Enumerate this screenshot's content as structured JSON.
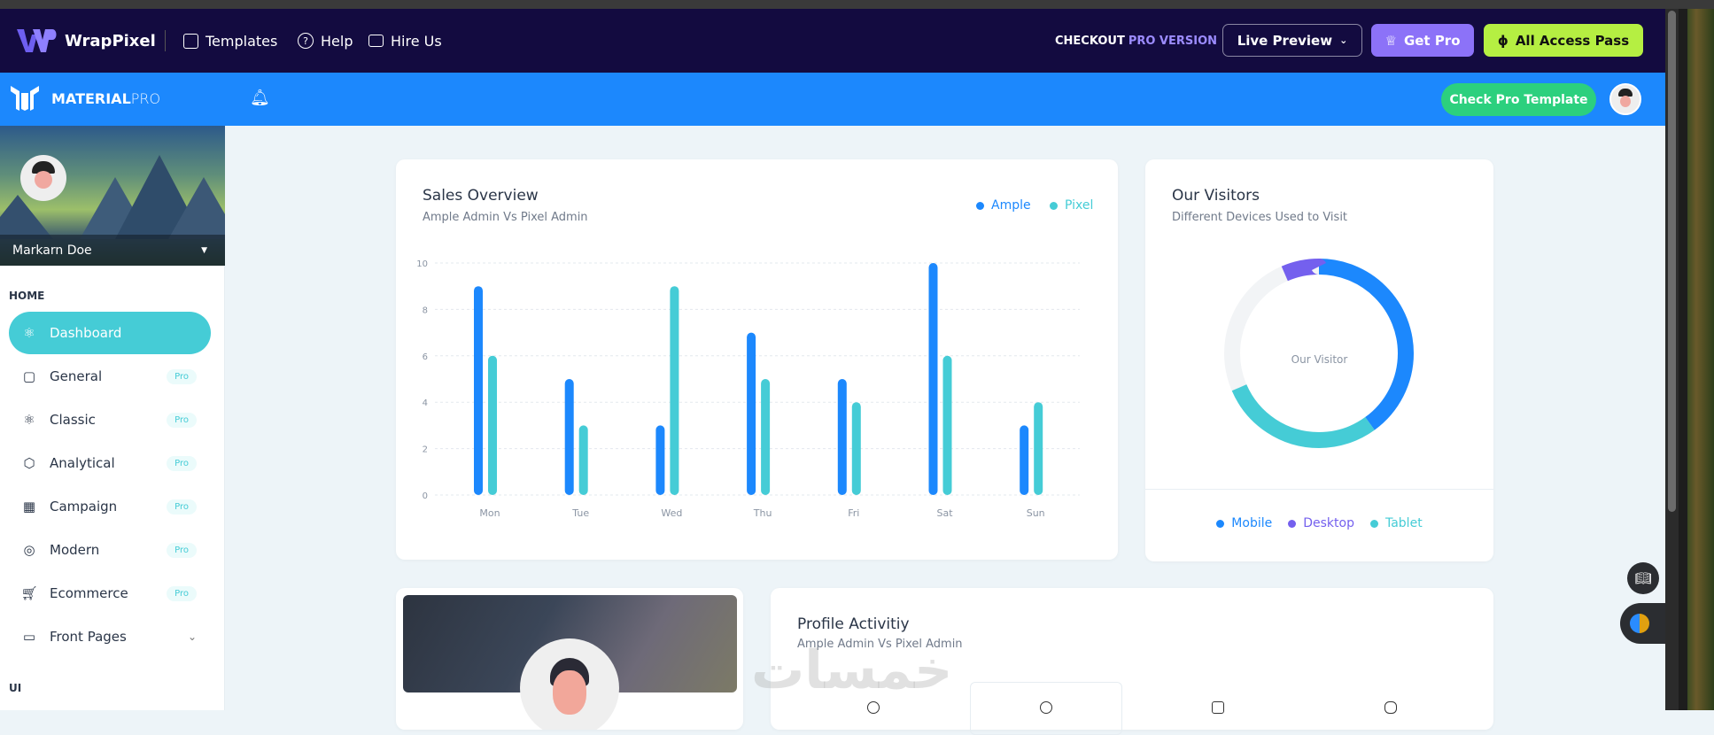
{
  "topbar": {
    "brand": "WrapPixel",
    "nav": [
      {
        "label": "Templates",
        "icon": "template-icon"
      },
      {
        "label": "Help",
        "icon": "help-circle-icon"
      },
      {
        "label": "Hire Us",
        "icon": "briefcase-icon"
      }
    ],
    "checkout_a": "CHECKOUT",
    "checkout_b": "PRO VERSION",
    "live_preview": "Live Preview",
    "get_pro": "Get Pro",
    "all_access": "All Access Pass"
  },
  "appbar": {
    "brand_bold": "MATERIAL",
    "brand_light": "PRO",
    "check_pro": "Check Pro Template"
  },
  "sidebar": {
    "user": "Markarn Doe",
    "section_home": "HOME",
    "section_ui": "UI",
    "pro_badge": "Pro",
    "items": [
      {
        "label": "Dashboard",
        "icon": "atom-icon",
        "active": true
      },
      {
        "label": "General",
        "icon": "monitor-icon",
        "pro": true
      },
      {
        "label": "Classic",
        "icon": "atom-icon",
        "pro": true
      },
      {
        "label": "Analytical",
        "icon": "box-icon",
        "pro": true
      },
      {
        "label": "Campaign",
        "icon": "building-icon",
        "pro": true
      },
      {
        "label": "Modern",
        "icon": "basketball-icon",
        "pro": true
      },
      {
        "label": "Ecommerce",
        "icon": "cart-icon",
        "pro": true
      },
      {
        "label": "Front Pages",
        "icon": "app-window-icon",
        "expandable": true
      }
    ]
  },
  "colors": {
    "ample": "#1c88fd",
    "pixel": "#45ccd6",
    "desktop": "#7460ee",
    "track": "#f2f4f6"
  },
  "sales": {
    "title": "Sales Overview",
    "subtitle": "Ample Admin Vs Pixel Admin"
  },
  "visitors": {
    "title": "Our Visitors",
    "subtitle": "Different Devices Used to Visit",
    "center": "Our Visitor"
  },
  "activity": {
    "title": "Profile Activitiy",
    "subtitle": "Ample Admin Vs Pixel Admin"
  },
  "watermark": "خمسات",
  "chart_data": [
    {
      "type": "bar",
      "title": "Sales Overview",
      "categories": [
        "Mon",
        "Tue",
        "Wed",
        "Thu",
        "Fri",
        "Sat",
        "Sun"
      ],
      "series": [
        {
          "name": "Ample",
          "values": [
            9,
            5,
            3,
            7,
            5,
            10,
            3
          ]
        },
        {
          "name": "Pixel",
          "values": [
            6,
            3,
            9,
            5,
            4,
            6,
            4
          ]
        }
      ],
      "ylim": [
        0,
        10
      ],
      "yticks": [
        "0",
        "2",
        "4",
        "6",
        "8",
        "10"
      ],
      "grid": true,
      "legend": "top-right"
    },
    {
      "type": "pie",
      "title": "Our Visitors",
      "donut": true,
      "categories": [
        "Mobile",
        "Tablet",
        "Desktop"
      ],
      "values": [
        40,
        28.5,
        6.5
      ],
      "legend": "bottom"
    }
  ]
}
